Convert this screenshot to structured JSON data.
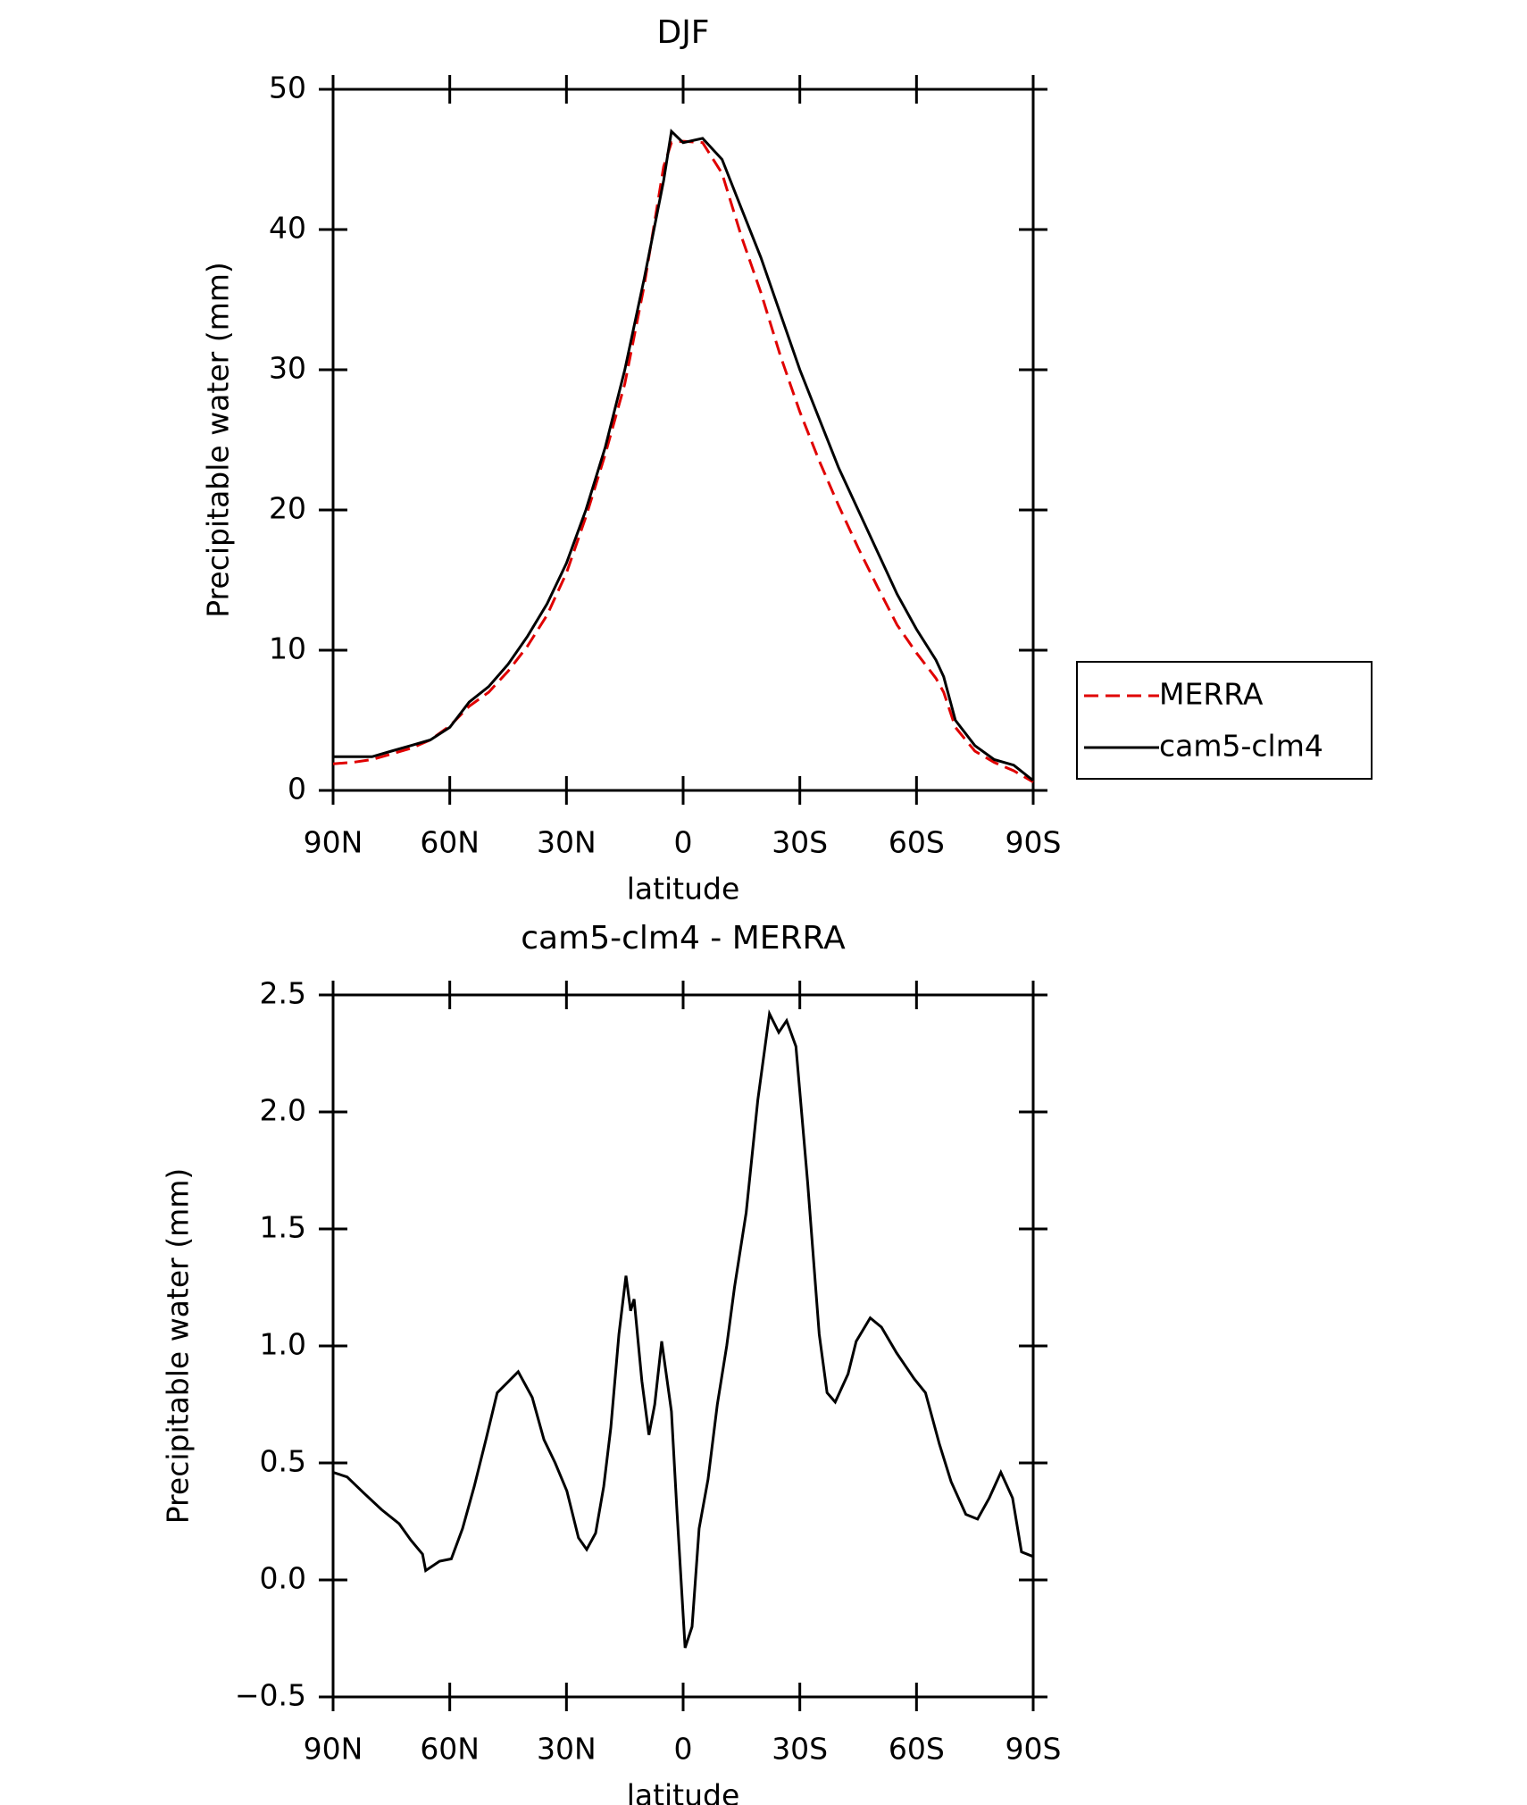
{
  "chart_data": [
    {
      "type": "line",
      "title": "DJF",
      "xlabel": "latitude",
      "ylabel": "Precipitable water (mm)",
      "x": [
        90,
        85,
        80,
        75,
        70,
        65,
        60,
        55,
        50,
        45,
        40,
        35,
        30,
        25,
        20,
        15,
        10,
        5,
        3,
        0,
        -5,
        -10,
        -15,
        -20,
        -25,
        -30,
        -35,
        -40,
        -45,
        -50,
        -55,
        -60,
        -65,
        -67,
        -70,
        -75,
        -80,
        -85,
        -90
      ],
      "series": [
        {
          "name": "MERRA",
          "color": "#e00000",
          "dashed": true,
          "values": [
            1.9,
            2.0,
            2.2,
            2.6,
            3.0,
            3.6,
            4.6,
            6.0,
            7.0,
            8.5,
            10.3,
            12.5,
            15.5,
            19.5,
            24.0,
            29.0,
            36.0,
            44.5,
            46.2,
            46.3,
            46.2,
            44.0,
            39.5,
            35.5,
            31.0,
            27.0,
            23.5,
            20.3,
            17.3,
            14.5,
            11.8,
            9.8,
            8.0,
            7.0,
            4.5,
            2.8,
            2.0,
            1.4,
            0.6
          ]
        },
        {
          "name": "cam5-clm4",
          "color": "#000000",
          "dashed": false,
          "values": [
            2.4,
            2.4,
            2.4,
            2.8,
            3.2,
            3.6,
            4.5,
            6.3,
            7.4,
            9.0,
            11.0,
            13.3,
            16.2,
            20.0,
            24.5,
            30.0,
            36.5,
            43.5,
            47.0,
            46.2,
            46.5,
            45.0,
            41.5,
            38.0,
            34.0,
            30.0,
            26.5,
            23.0,
            20.0,
            17.0,
            14.0,
            11.5,
            9.3,
            8.1,
            5.0,
            3.2,
            2.2,
            1.8,
            0.7
          ]
        }
      ],
      "xlim": [
        90,
        -90
      ],
      "xticks": [
        {
          "value": 90,
          "label": "90N"
        },
        {
          "value": 60,
          "label": "60N"
        },
        {
          "value": 30,
          "label": "30N"
        },
        0,
        {
          "value": -30,
          "label": "30S"
        },
        {
          "value": -60,
          "label": "60S"
        },
        {
          "value": -90,
          "label": "90S"
        }
      ],
      "ylim": [
        0,
        50
      ],
      "yticks": [
        0,
        10,
        20,
        30,
        40,
        50
      ],
      "legend": "right"
    },
    {
      "type": "line",
      "title": "cam5-clm4 - MERRA",
      "xlabel": "latitude",
      "ylabel": "Precipitable water (mm)",
      "color": "#000000",
      "x": [
        90,
        86.4,
        82,
        77.5,
        73,
        70,
        67,
        66.2,
        62.6,
        59.6,
        56.7,
        53.7,
        50.7,
        47.8,
        44.8,
        42.4,
        38.8,
        35.8,
        32.9,
        29.9,
        26.9,
        24.8,
        22.5,
        20.4,
        18.6,
        16.5,
        14.7,
        13.5,
        12.6,
        10.6,
        8.8,
        7.3,
        5.5,
        3.0,
        1.6,
        -0.5,
        -2.3,
        -4.1,
        -6.4,
        -8.8,
        -11.2,
        -13.2,
        -16.2,
        -19.2,
        -22.2,
        -24.6,
        -26.6,
        -29.0,
        -32.0,
        -35.0,
        -37.0,
        -39.1,
        -42.4,
        -44.5,
        -48.1,
        -51.0,
        -54.9,
        -59.4,
        -62.3,
        -65.9,
        -68.9,
        -72.7,
        -75.7,
        -78.7,
        -81.7,
        -84.7,
        -87.0,
        -90
      ],
      "values": [
        0.46,
        0.44,
        0.37,
        0.3,
        0.24,
        0.17,
        0.11,
        0.04,
        0.08,
        0.09,
        0.22,
        0.4,
        0.6,
        0.8,
        0.85,
        0.89,
        0.78,
        0.6,
        0.5,
        0.38,
        0.18,
        0.13,
        0.2,
        0.4,
        0.65,
        1.05,
        1.3,
        1.15,
        1.2,
        0.85,
        0.62,
        0.75,
        1.02,
        0.72,
        0.3,
        -0.29,
        -0.2,
        0.22,
        0.43,
        0.75,
        1.0,
        1.25,
        1.57,
        2.05,
        2.42,
        2.34,
        2.39,
        2.28,
        1.7,
        1.05,
        0.8,
        0.76,
        0.88,
        1.02,
        1.12,
        1.08,
        0.97,
        0.86,
        0.8,
        0.58,
        0.42,
        0.28,
        0.26,
        0.35,
        0.46,
        0.35,
        0.12,
        0.1
      ],
      "xlim": [
        90,
        -90
      ],
      "xticks": [
        {
          "value": 90,
          "label": "90N"
        },
        {
          "value": 60,
          "label": "60N"
        },
        {
          "value": 30,
          "label": "30N"
        },
        0,
        {
          "value": -30,
          "label": "30S"
        },
        {
          "value": -60,
          "label": "60S"
        },
        {
          "value": -90,
          "label": "90S"
        }
      ],
      "ylim": [
        -0.5,
        2.5
      ],
      "yticks": [
        {
          "value": -0.5,
          "label": "−0.5"
        },
        {
          "value": 0,
          "label": "0.0"
        },
        0.5,
        {
          "value": 1,
          "label": "1.0"
        },
        1.5,
        {
          "value": 2,
          "label": "2.0"
        },
        2.5
      ]
    }
  ]
}
